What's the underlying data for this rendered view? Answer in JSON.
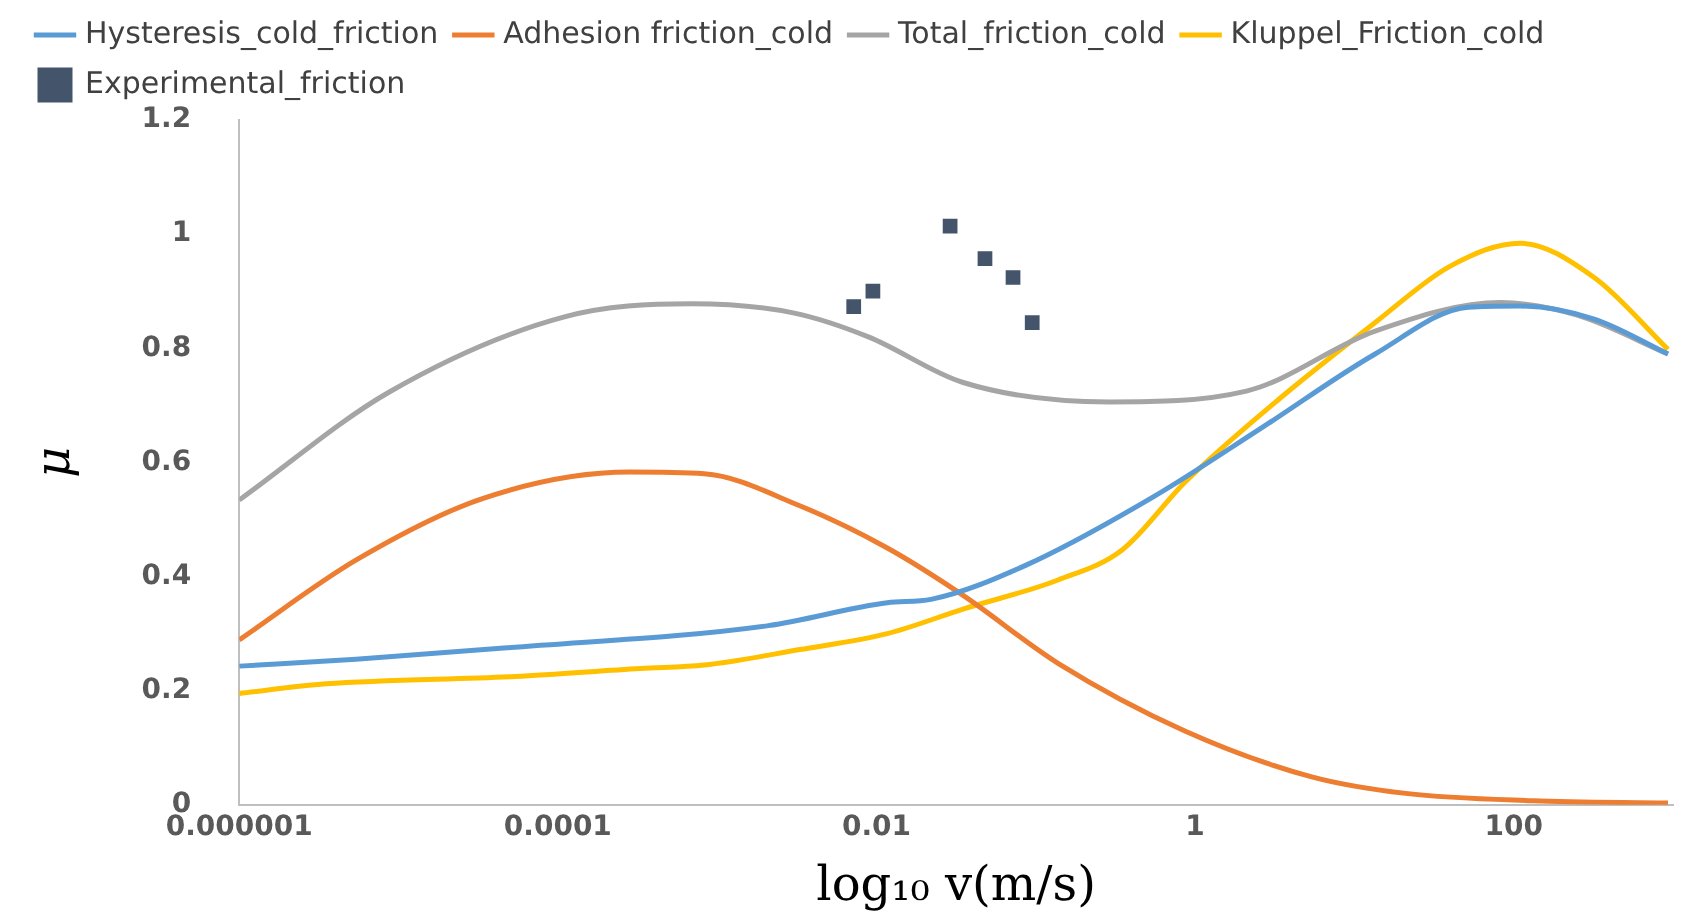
{
  "chart_data": {
    "type": "line",
    "xlabel": "log₁₀ v(m/s)",
    "ylabel": "μ",
    "log": "x",
    "xlim": [
      1e-06,
      1000
    ],
    "xticks": [
      {
        "value": 1e-06,
        "label": "0.000001"
      },
      0.0001,
      0.01,
      1,
      100
    ],
    "ylim": [
      0,
      1.2
    ],
    "yticks": [
      0,
      0.2,
      0.4,
      0.6,
      0.8,
      1,
      1.2
    ],
    "grid": false,
    "legend": "top",
    "marker": "none",
    "series": [
      {
        "name": "Hysteresis_cold_friction",
        "color": "#5b9bd5",
        "x": [
          1e-06,
          5.4e-06,
          4.8e-05,
          0.0021,
          0.0117,
          0.022,
          0.087,
          0.55,
          2.6,
          13.5,
          52,
          110,
          320,
          930
        ],
        "values": [
          0.243,
          0.255,
          0.275,
          0.314,
          0.354,
          0.36,
          0.42,
          0.54,
          0.66,
          0.79,
          0.872,
          0.874,
          0.851,
          0.79
        ]
      },
      {
        "name": "Adhesion friction_cold",
        "color": "#ed7d31",
        "x": [
          1e-06,
          5.5e-06,
          3.4e-05,
          0.00028,
          0.00083,
          0.0033,
          0.0117,
          0.035,
          0.138,
          0.87,
          5.4,
          21,
          132,
          930
        ],
        "values": [
          0.289,
          0.43,
          0.537,
          0.583,
          0.58,
          0.524,
          0.45,
          0.367,
          0.248,
          0.129,
          0.049,
          0.02,
          0.007,
          0.003
        ]
      },
      {
        "name": "Total_friction_cold",
        "color": "#a5a5a5",
        "x": [
          1e-06,
          8.7e-06,
          0.00011,
          0.00069,
          0.003,
          0.0089,
          0.035,
          0.29,
          2.1,
          13.5,
          83,
          250,
          930
        ],
        "values": [
          0.534,
          0.723,
          0.855,
          0.878,
          0.862,
          0.82,
          0.74,
          0.706,
          0.725,
          0.83,
          0.88,
          0.858,
          0.79
        ]
      },
      {
        "name": "Kluppel_Friction_cold",
        "color": "#ffc000",
        "x": [
          1e-06,
          3.5e-06,
          5.4e-05,
          0.00033,
          0.00083,
          0.0033,
          0.0117,
          0.035,
          0.138,
          0.35,
          0.87,
          3.4,
          13.5,
          40,
          110,
          320,
          930
        ],
        "values": [
          0.195,
          0.212,
          0.225,
          0.239,
          0.245,
          0.272,
          0.3,
          0.343,
          0.394,
          0.447,
          0.566,
          0.712,
          0.845,
          0.944,
          0.984,
          0.924,
          0.798
        ]
      },
      {
        "name": "Experimental_friction",
        "type": "scatter",
        "marker": "square",
        "color": "#44546a",
        "x": [
          0.0072,
          0.0095,
          0.029,
          0.048,
          0.072,
          0.095
        ],
        "values": [
          0.873,
          0.9,
          1.014,
          0.957,
          0.924,
          0.845
        ]
      }
    ]
  }
}
